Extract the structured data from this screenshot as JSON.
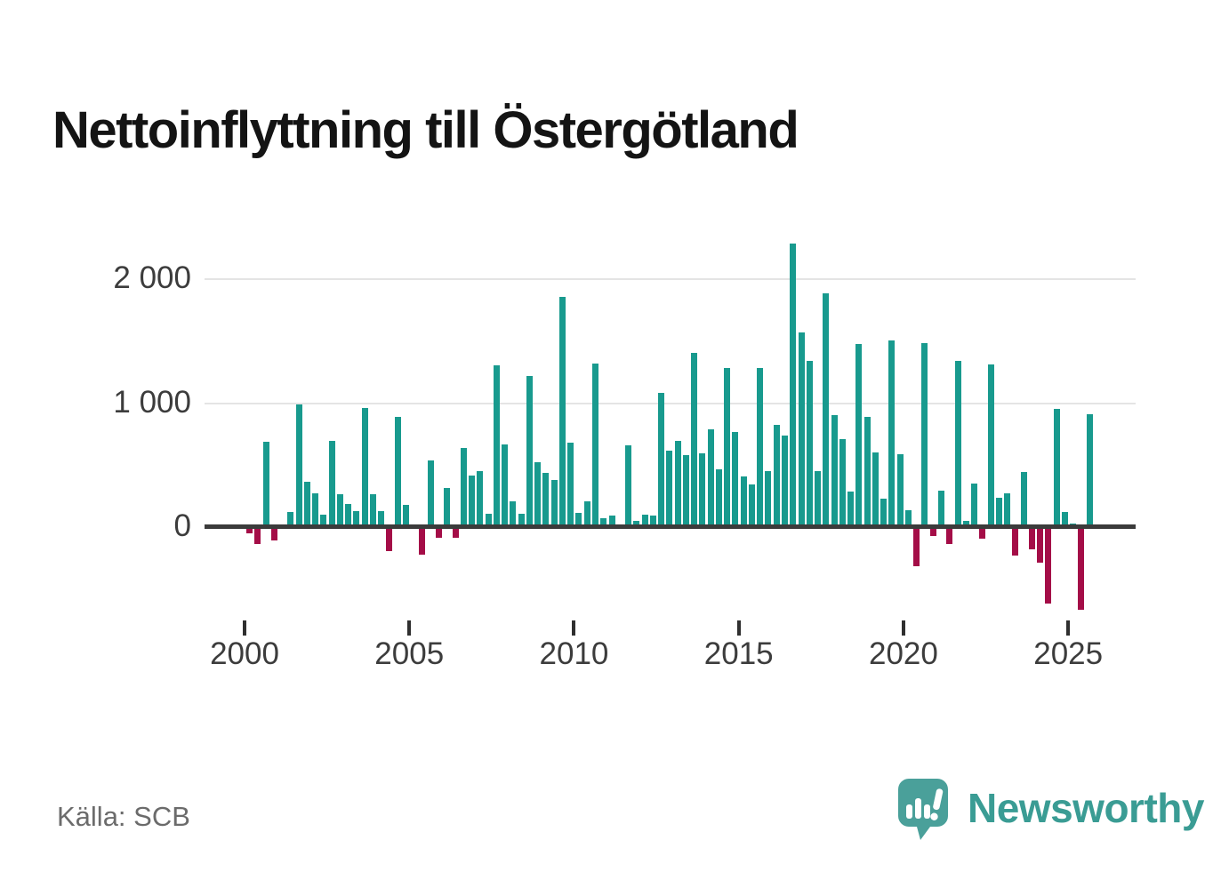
{
  "header": {
    "title": "Nettoinflyttning till Östergötland"
  },
  "footer": {
    "source": "Källa: SCB",
    "brand": "Newsworthy"
  },
  "chart_data": {
    "type": "bar",
    "title": "Nettoinflyttning till Östergötland",
    "xlabel": "",
    "ylabel": "",
    "grid": "horizontal",
    "legend": "none",
    "ylim": [
      -704,
      2312
    ],
    "positive_color": "#189a8e",
    "negative_color": "#a40d47",
    "yticks": [
      {
        "value": 0,
        "label": "0"
      },
      {
        "value": 1000,
        "label": "1 000"
      },
      {
        "value": 2000,
        "label": "2 000"
      }
    ],
    "xticks": [
      {
        "value": 2000,
        "label": "2000"
      },
      {
        "value": 2005,
        "label": "2005"
      },
      {
        "value": 2010,
        "label": "2010"
      },
      {
        "value": 2015,
        "label": "2015"
      },
      {
        "value": 2020,
        "label": "2020"
      },
      {
        "value": 2025,
        "label": "2025"
      }
    ],
    "categories": [
      "2000Q1",
      "2000Q2",
      "2000Q3",
      "2000Q4",
      "2001Q1",
      "2001Q2",
      "2001Q3",
      "2001Q4",
      "2002Q1",
      "2002Q2",
      "2002Q3",
      "2002Q4",
      "2003Q1",
      "2003Q2",
      "2003Q3",
      "2003Q4",
      "2004Q1",
      "2004Q2",
      "2004Q3",
      "2004Q4",
      "2005Q1",
      "2005Q2",
      "2005Q3",
      "2005Q4",
      "2006Q1",
      "2006Q2",
      "2006Q3",
      "2006Q4",
      "2007Q1",
      "2007Q2",
      "2007Q3",
      "2007Q4",
      "2008Q1",
      "2008Q2",
      "2008Q3",
      "2008Q4",
      "2009Q1",
      "2009Q2",
      "2009Q3",
      "2009Q4",
      "2010Q1",
      "2010Q2",
      "2010Q3",
      "2010Q4",
      "2011Q1",
      "2011Q2",
      "2011Q3",
      "2011Q4",
      "2012Q1",
      "2012Q2",
      "2012Q3",
      "2012Q4",
      "2013Q1",
      "2013Q2",
      "2013Q3",
      "2013Q4",
      "2014Q1",
      "2014Q2",
      "2014Q3",
      "2014Q4",
      "2015Q1",
      "2015Q2",
      "2015Q3",
      "2015Q4",
      "2016Q1",
      "2016Q2",
      "2016Q3",
      "2016Q4",
      "2017Q1",
      "2017Q2",
      "2017Q3",
      "2017Q4",
      "2018Q1",
      "2018Q2",
      "2018Q3",
      "2018Q4",
      "2019Q1",
      "2019Q2",
      "2019Q3",
      "2019Q4",
      "2020Q1",
      "2020Q2",
      "2020Q3",
      "2020Q4",
      "2021Q1",
      "2021Q2",
      "2021Q3",
      "2021Q4",
      "2022Q1",
      "2022Q2",
      "2022Q3",
      "2022Q4",
      "2023Q1",
      "2023Q2",
      "2023Q3",
      "2023Q4",
      "2024Q1",
      "2024Q2",
      "2024Q3",
      "2024Q4",
      "2025Q1",
      "2025Q2",
      "2025Q3"
    ],
    "values": [
      -45,
      -131,
      680,
      -100,
      15,
      115,
      985,
      360,
      263,
      95,
      690,
      255,
      180,
      125,
      953,
      258,
      122,
      -187,
      880,
      175,
      0,
      -213,
      530,
      -77,
      311,
      -81,
      634,
      407,
      443,
      100,
      1300,
      663,
      203,
      100,
      1215,
      519,
      431,
      371,
      1851,
      675,
      110,
      198,
      1313,
      65,
      84,
      0,
      651,
      41,
      96,
      84,
      1077,
      610,
      687,
      578,
      1402,
      590,
      783,
      463,
      1277,
      764,
      402,
      340,
      1281,
      443,
      822,
      731,
      2287,
      1562,
      1337,
      443,
      1880,
      898,
      707,
      283,
      1473,
      882,
      599,
      220,
      1504,
      580,
      132,
      -311,
      1478,
      -65,
      287,
      -127,
      1334,
      41,
      343,
      -84,
      1305,
      228,
      263,
      -223,
      438,
      -172,
      -280,
      -611,
      946,
      115,
      25,
      -663,
      906
    ]
  }
}
